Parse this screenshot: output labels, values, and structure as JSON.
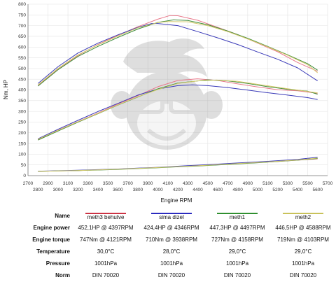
{
  "chart_data": {
    "type": "line",
    "xlabel": "Engine RPM",
    "ylabel": "Nm, HP",
    "xlim": [
      2700,
      5700
    ],
    "ylim": [
      0,
      800
    ],
    "grid": true,
    "x_ticks_upper": [
      "2700",
      "2900",
      "3100",
      "3300",
      "3500",
      "3700",
      "3900",
      "4100",
      "4300",
      "4500",
      "4700",
      "4900",
      "5100",
      "5300",
      "5500",
      "5700"
    ],
    "x_ticks_lower": [
      "2800",
      "3000",
      "3200",
      "3400",
      "3600",
      "3800",
      "4000",
      "4200",
      "4400",
      "4600",
      "4800",
      "5000",
      "5200",
      "5400",
      "5600"
    ],
    "y_ticks": [
      "0",
      "50",
      "100",
      "150",
      "200",
      "250",
      "300",
      "350",
      "400",
      "450",
      "500",
      "550",
      "600",
      "650",
      "700",
      "750",
      "800"
    ],
    "series": [
      {
        "name": "meth3 behutve",
        "color": "#e8788a",
        "torque": [
          [
            2800,
            420
          ],
          [
            3000,
            498
          ],
          [
            3200,
            560
          ],
          [
            3400,
            612
          ],
          [
            3600,
            655
          ],
          [
            3800,
            695
          ],
          [
            4000,
            730
          ],
          [
            4121,
            747
          ],
          [
            4200,
            746
          ],
          [
            4400,
            725
          ],
          [
            4600,
            692
          ],
          [
            4800,
            658
          ],
          [
            5000,
            618
          ],
          [
            5200,
            578
          ],
          [
            5400,
            528
          ],
          [
            5600,
            487
          ]
        ],
        "power": [
          [
            2800,
            168
          ],
          [
            3000,
            212
          ],
          [
            3200,
            252
          ],
          [
            3400,
            292
          ],
          [
            3600,
            334
          ],
          [
            3800,
            373
          ],
          [
            4000,
            415
          ],
          [
            4200,
            444
          ],
          [
            4397,
            452
          ],
          [
            4600,
            444
          ],
          [
            4800,
            428
          ],
          [
            5000,
            414
          ],
          [
            5200,
            401
          ],
          [
            5400,
            396
          ],
          [
            5600,
            384
          ]
        ],
        "pressure": [
          [
            2800,
            20
          ],
          [
            3000,
            22
          ],
          [
            3200,
            24
          ],
          [
            3400,
            27
          ],
          [
            3600,
            30
          ],
          [
            3800,
            34
          ],
          [
            4000,
            38
          ],
          [
            4200,
            42
          ],
          [
            4400,
            46
          ],
          [
            4600,
            51
          ],
          [
            4800,
            56
          ],
          [
            5000,
            61
          ],
          [
            5200,
            66
          ],
          [
            5400,
            72
          ],
          [
            5600,
            78
          ]
        ]
      },
      {
        "name": "sima dizel",
        "color": "#3a3ab8",
        "torque": [
          [
            2800,
            430
          ],
          [
            3000,
            508
          ],
          [
            3200,
            572
          ],
          [
            3400,
            618
          ],
          [
            3600,
            657
          ],
          [
            3800,
            692
          ],
          [
            3938,
            710
          ],
          [
            4000,
            710
          ],
          [
            4200,
            700
          ],
          [
            4400,
            672
          ],
          [
            4600,
            643
          ],
          [
            4800,
            612
          ],
          [
            5000,
            577
          ],
          [
            5200,
            543
          ],
          [
            5400,
            503
          ],
          [
            5600,
            442
          ]
        ],
        "power": [
          [
            2800,
            172
          ],
          [
            3000,
            216
          ],
          [
            3200,
            258
          ],
          [
            3400,
            299
          ],
          [
            3600,
            337
          ],
          [
            3800,
            376
          ],
          [
            4000,
            404
          ],
          [
            4200,
            420
          ],
          [
            4346,
            424
          ],
          [
            4500,
            420
          ],
          [
            4700,
            411
          ],
          [
            4900,
            399
          ],
          [
            5100,
            387
          ],
          [
            5300,
            376
          ],
          [
            5500,
            364
          ],
          [
            5600,
            355
          ]
        ],
        "pressure": [
          [
            2800,
            21
          ],
          [
            3000,
            23
          ],
          [
            3200,
            25
          ],
          [
            3400,
            28
          ],
          [
            3600,
            31
          ],
          [
            3800,
            35
          ],
          [
            4000,
            39
          ],
          [
            4200,
            44
          ],
          [
            4400,
            49
          ],
          [
            4600,
            54
          ],
          [
            4800,
            59
          ],
          [
            5000,
            64
          ],
          [
            5200,
            70
          ],
          [
            5400,
            76
          ],
          [
            5600,
            86
          ]
        ]
      },
      {
        "name": "meth1",
        "color": "#3f8c3a",
        "torque": [
          [
            2800,
            418
          ],
          [
            3000,
            494
          ],
          [
            3200,
            556
          ],
          [
            3400,
            603
          ],
          [
            3600,
            645
          ],
          [
            3800,
            684
          ],
          [
            4000,
            715
          ],
          [
            4158,
            727
          ],
          [
            4300,
            724
          ],
          [
            4500,
            704
          ],
          [
            4700,
            675
          ],
          [
            4900,
            641
          ],
          [
            5100,
            603
          ],
          [
            5300,
            564
          ],
          [
            5500,
            522
          ],
          [
            5600,
            492
          ]
        ],
        "power": [
          [
            2800,
            166
          ],
          [
            3000,
            208
          ],
          [
            3200,
            249
          ],
          [
            3400,
            289
          ],
          [
            3600,
            329
          ],
          [
            3800,
            367
          ],
          [
            4000,
            405
          ],
          [
            4200,
            432
          ],
          [
            4497,
            447
          ],
          [
            4700,
            442
          ],
          [
            4900,
            430
          ],
          [
            5100,
            415
          ],
          [
            5300,
            403
          ],
          [
            5500,
            394
          ],
          [
            5600,
            380
          ]
        ],
        "pressure": [
          [
            2800,
            20
          ],
          [
            3000,
            22
          ],
          [
            3200,
            24
          ],
          [
            3400,
            26
          ],
          [
            3600,
            29
          ],
          [
            3800,
            33
          ],
          [
            4000,
            37
          ],
          [
            4200,
            41
          ],
          [
            4400,
            45
          ],
          [
            4600,
            50
          ],
          [
            4800,
            55
          ],
          [
            5000,
            60
          ],
          [
            5200,
            66
          ],
          [
            5400,
            72
          ],
          [
            5600,
            80
          ]
        ]
      },
      {
        "name": "meth2",
        "color": "#d4c96a",
        "torque": [
          [
            2800,
            424
          ],
          [
            3000,
            500
          ],
          [
            3200,
            563
          ],
          [
            3400,
            610
          ],
          [
            3600,
            651
          ],
          [
            3800,
            690
          ],
          [
            4000,
            714
          ],
          [
            4103,
            719
          ],
          [
            4300,
            718
          ],
          [
            4500,
            700
          ],
          [
            4700,
            672
          ],
          [
            4900,
            638
          ],
          [
            5100,
            601
          ],
          [
            5300,
            562
          ],
          [
            5500,
            518
          ],
          [
            5600,
            480
          ]
        ],
        "power": [
          [
            2800,
            170
          ],
          [
            3000,
            211
          ],
          [
            3200,
            251
          ],
          [
            3400,
            290
          ],
          [
            3600,
            330
          ],
          [
            3800,
            368
          ],
          [
            4000,
            402
          ],
          [
            4200,
            430
          ],
          [
            4400,
            442
          ],
          [
            4588,
            446
          ],
          [
            4800,
            440
          ],
          [
            5000,
            426
          ],
          [
            5200,
            412
          ],
          [
            5400,
            399
          ],
          [
            5600,
            386
          ]
        ],
        "pressure": [
          [
            2800,
            20
          ],
          [
            3000,
            22
          ],
          [
            3200,
            24
          ],
          [
            3400,
            27
          ],
          [
            3600,
            30
          ],
          [
            3800,
            34
          ],
          [
            4000,
            38
          ],
          [
            4200,
            42
          ],
          [
            4400,
            46
          ],
          [
            4600,
            51
          ],
          [
            4800,
            56
          ],
          [
            5000,
            61
          ],
          [
            5200,
            67
          ],
          [
            5400,
            73
          ],
          [
            5600,
            82
          ]
        ]
      }
    ]
  },
  "table": {
    "row_labels": {
      "name": "Name",
      "power": "Engine power",
      "torque": "Engine torque",
      "temperature": "Temperature",
      "pressure": "Pressure",
      "norm": "Norm"
    },
    "columns": [
      {
        "name": "meth3 behutve",
        "color": "#cc3344",
        "power": "452,1HP @ 4397RPM",
        "torque": "747Nm @ 4121RPM",
        "temperature": "30,0°C",
        "pressure": "1001hPa",
        "norm": "DIN 70020"
      },
      {
        "name": "sima dizel",
        "color": "#2b2bbf",
        "power": "424,4HP @ 4346RPM",
        "torque": "710Nm @ 3938RPM",
        "temperature": "28,0°C",
        "pressure": "1001hPa",
        "norm": "DIN 70020"
      },
      {
        "name": "meth1",
        "color": "#2f8f2f",
        "power": "447,3HP @ 4497RPM",
        "torque": "727Nm @ 4158RPM",
        "temperature": "29,0°C",
        "pressure": "1001hPa",
        "norm": "DIN 70020"
      },
      {
        "name": "meth2",
        "color": "#c9c25a",
        "power": "446,5HP @ 4588RPM",
        "torque": "719Nm @ 4103RPM",
        "temperature": "29,0°C",
        "pressure": "1001hPa",
        "norm": "DIN 70020"
      }
    ]
  }
}
